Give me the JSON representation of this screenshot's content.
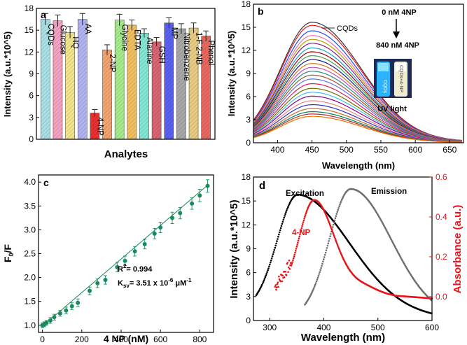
{
  "colors": {
    "axis": "#000000",
    "calibration": "#1a8a5c",
    "excitation": "#000000",
    "emission": "#6e6e6e",
    "absorbance": "#e8141a"
  },
  "chart_data": [
    {
      "panel": "a",
      "type": "bar",
      "xlabel": "Analytes",
      "ylabel": "Intensity (a.u.*10^5)",
      "ylim": [
        0,
        18
      ],
      "yticks": [
        0,
        3,
        6,
        9,
        12,
        15,
        18
      ],
      "categories": [
        "CQDs",
        "Glucose",
        "HQ",
        "AA",
        "4-NP",
        "2-NP",
        "Glycine",
        "EDTA",
        "Alanine",
        "GSH",
        "MP",
        "Nitrobenzene",
        "1-F 2-NB",
        "Phenol"
      ],
      "values": [
        16.5,
        16.3,
        14.7,
        16.5,
        3.6,
        12.3,
        16.4,
        15.7,
        14.6,
        13.4,
        16.0,
        15.2,
        15.3,
        14.2
      ],
      "errors": [
        0.8,
        0.8,
        0.8,
        0.8,
        0.5,
        0.7,
        0.8,
        0.7,
        0.6,
        0.6,
        0.7,
        0.7,
        0.7,
        0.7
      ],
      "colors": [
        "#a8e0e6",
        "#f4a2c3",
        "#f4e48a",
        "#b2b4f2",
        "#e83030",
        "#f2a470",
        "#a6ec8c",
        "#f0c060",
        "#82e8d4",
        "#d86474",
        "#5a60f0",
        "#a8a8a8",
        "#e8cc84",
        "#e86860"
      ]
    },
    {
      "panel": "b",
      "type": "line",
      "xlabel": "Wavelength (nm)",
      "ylabel": "Intensity (a.u.*10^5)",
      "xlim": [
        365,
        670
      ],
      "ylim": [
        0,
        18
      ],
      "xticks": [
        400,
        450,
        500,
        550,
        600,
        650
      ],
      "yticks": [
        0,
        3,
        6,
        9,
        12,
        15,
        18
      ],
      "peak_wavelength": 450,
      "legend": "CQDs",
      "annotation_top": "0 nM 4NP",
      "annotation_bottom": "840 nM 4NP",
      "inset_caption": "UV light",
      "inset_vial_labels": [
        "CQDs",
        "CQDs+4-NP"
      ],
      "series_peaks": [
        15.5,
        15.1,
        14.4,
        13.8,
        13.3,
        12.8,
        12.2,
        11.7,
        11.2,
        10.7,
        10.2,
        9.7,
        9.2,
        8.7,
        8.2,
        7.6,
        7.0,
        6.5,
        6.0,
        5.4,
        4.9,
        4.4,
        4.0,
        3.7,
        3.4
      ],
      "series_colors": [
        "#333333",
        "#e8141a",
        "#1a4ff0",
        "#f06eb4",
        "#b8a000",
        "#8a1a8a",
        "#1aa0d0",
        "#a00000",
        "#50a050",
        "#1a1a90",
        "#e07020",
        "#c050c0",
        "#2a8a8a",
        "#a05a2a",
        "#6070f0",
        "#d02060",
        "#707000",
        "#40c0f0",
        "#900090",
        "#f08080",
        "#3030c0",
        "#c07030",
        "#008060",
        "#b03030",
        "#f07000"
      ]
    },
    {
      "panel": "c",
      "type": "scatter",
      "xlabel": "4 NP (nM)",
      "ylabel": "F0/F",
      "ylabel_main": "F",
      "ylabel_sub": "0",
      "ylabel_tail": "/F",
      "xlim": [
        -20,
        870
      ],
      "ylim": [
        0.85,
        4.15
      ],
      "xticks": [
        0,
        200,
        400,
        600,
        800
      ],
      "yticks": [
        1.0,
        1.5,
        2.0,
        2.5,
        3.0,
        3.5,
        4.0
      ],
      "x": [
        0,
        10,
        20,
        40,
        60,
        90,
        120,
        150,
        180,
        240,
        280,
        320,
        380,
        420,
        470,
        520,
        570,
        600,
        660,
        700,
        760,
        800,
        840
      ],
      "y": [
        1.0,
        1.02,
        1.05,
        1.1,
        1.17,
        1.25,
        1.31,
        1.4,
        1.47,
        1.72,
        1.88,
        1.95,
        2.22,
        2.35,
        2.55,
        2.7,
        2.92,
        3.05,
        3.25,
        3.35,
        3.55,
        3.72,
        3.92
      ],
      "errors": [
        0.05,
        0.05,
        0.05,
        0.06,
        0.06,
        0.06,
        0.07,
        0.07,
        0.08,
        0.08,
        0.09,
        0.09,
        0.1,
        0.1,
        0.1,
        0.1,
        0.11,
        0.11,
        0.12,
        0.12,
        0.12,
        0.13,
        0.13
      ],
      "fit": {
        "intercept": 0.98,
        "slope": 0.00352
      },
      "r2_label": "R",
      "r2_sup": "2",
      "r2_value": "= 0.994",
      "ksv_label": "K",
      "ksv_sub": "sv",
      "ksv_value": "= 3.51 x 10",
      "ksv_exp": "-6",
      "ksv_unit": "μM",
      "ksv_unit_exp": "-1"
    },
    {
      "panel": "d",
      "type": "line",
      "xlabel": "Wavelength (nm)",
      "ylabel_left": "Intensity (a.u.*10^5)",
      "ylabel_right": "Absorbance (a.u.)",
      "xlim": [
        270,
        600
      ],
      "ylim_left": [
        0,
        18
      ],
      "ylim_right": [
        -0.12,
        0.6
      ],
      "xticks": [
        300,
        400,
        500,
        600
      ],
      "yticks_left": [
        0,
        3,
        6,
        9,
        12,
        15,
        18
      ],
      "yticks_right": [
        0.0,
        0.2,
        0.4,
        0.6
      ],
      "series": [
        {
          "name": "Excitation",
          "x_range": [
            275,
            600
          ],
          "peak_x": 352,
          "peak_y": 15.8
        },
        {
          "name": "Emission",
          "x_range": [
            365,
            600
          ],
          "peak_x": 450,
          "peak_y": 16.2
        },
        {
          "name": "4-NP",
          "x_range": [
            310,
            600
          ],
          "peak_x": 382,
          "peak_y": 0.48
        }
      ]
    }
  ]
}
